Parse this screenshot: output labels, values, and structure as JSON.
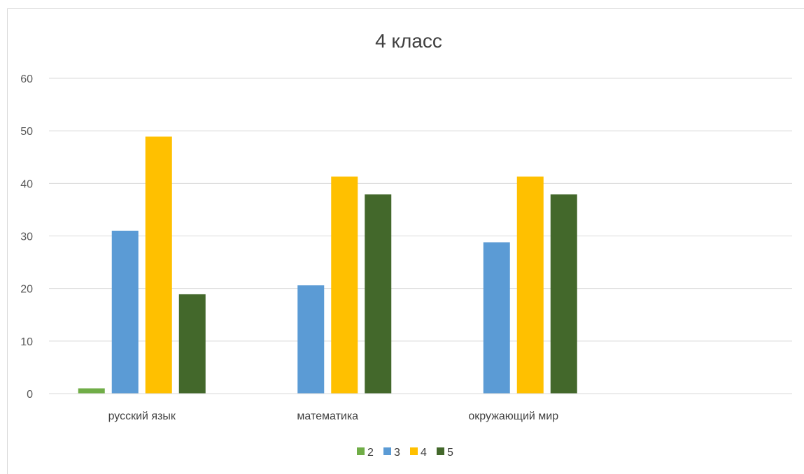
{
  "chart_data": {
    "type": "bar",
    "title": "4 класс",
    "categories": [
      "русский язык",
      "математика",
      "окружающий мир",
      ""
    ],
    "series": [
      {
        "name": "2",
        "color": "#70ad47",
        "values": [
          1,
          0,
          0,
          0
        ]
      },
      {
        "name": "3",
        "color": "#5b9bd5",
        "values": [
          31,
          20.6,
          28.8,
          0
        ]
      },
      {
        "name": "4",
        "color": "#ffc000",
        "values": [
          48.9,
          41.3,
          41.3,
          0
        ]
      },
      {
        "name": "5",
        "color": "#43682b",
        "values": [
          18.9,
          37.9,
          37.9,
          0
        ]
      }
    ],
    "ylim": [
      0,
      60
    ],
    "yticks": [
      "0",
      "10",
      "20",
      "30",
      "40",
      "50",
      "60"
    ],
    "grid": true,
    "legend": "bottom"
  }
}
